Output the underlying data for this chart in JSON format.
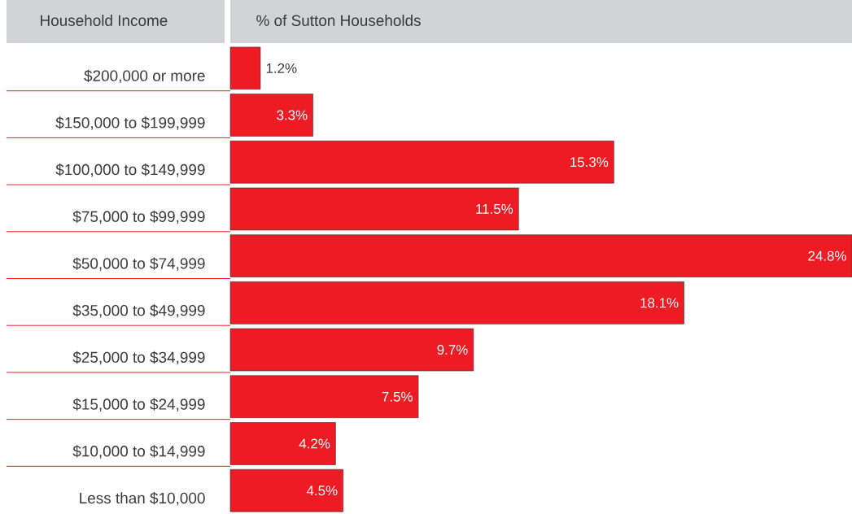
{
  "chart_data": {
    "type": "bar",
    "orientation": "horizontal",
    "ylabel": "Household Income",
    "xlabel": "% of Sutton Households",
    "categories": [
      "$200,000 or more",
      "$150,000 to $199,999",
      "$100,000 to $149,999",
      "$75,000 to $99,999",
      "$50,000 to $74,999",
      "$35,000 to $49,999",
      "$25,000 to $34,999",
      "$15,000 to $24,999",
      "$10,000 to $14,999",
      "Less than $10,000"
    ],
    "values": [
      1.2,
      3.3,
      15.3,
      11.5,
      24.8,
      18.1,
      9.7,
      7.5,
      4.2,
      4.5
    ],
    "value_labels": [
      "1.2%",
      "3.3%",
      "15.3%",
      "11.5%",
      "24.8%",
      "18.1%",
      "9.7%",
      "7.5%",
      "4.2%",
      "4.5%"
    ],
    "color": "#ed1c24"
  }
}
